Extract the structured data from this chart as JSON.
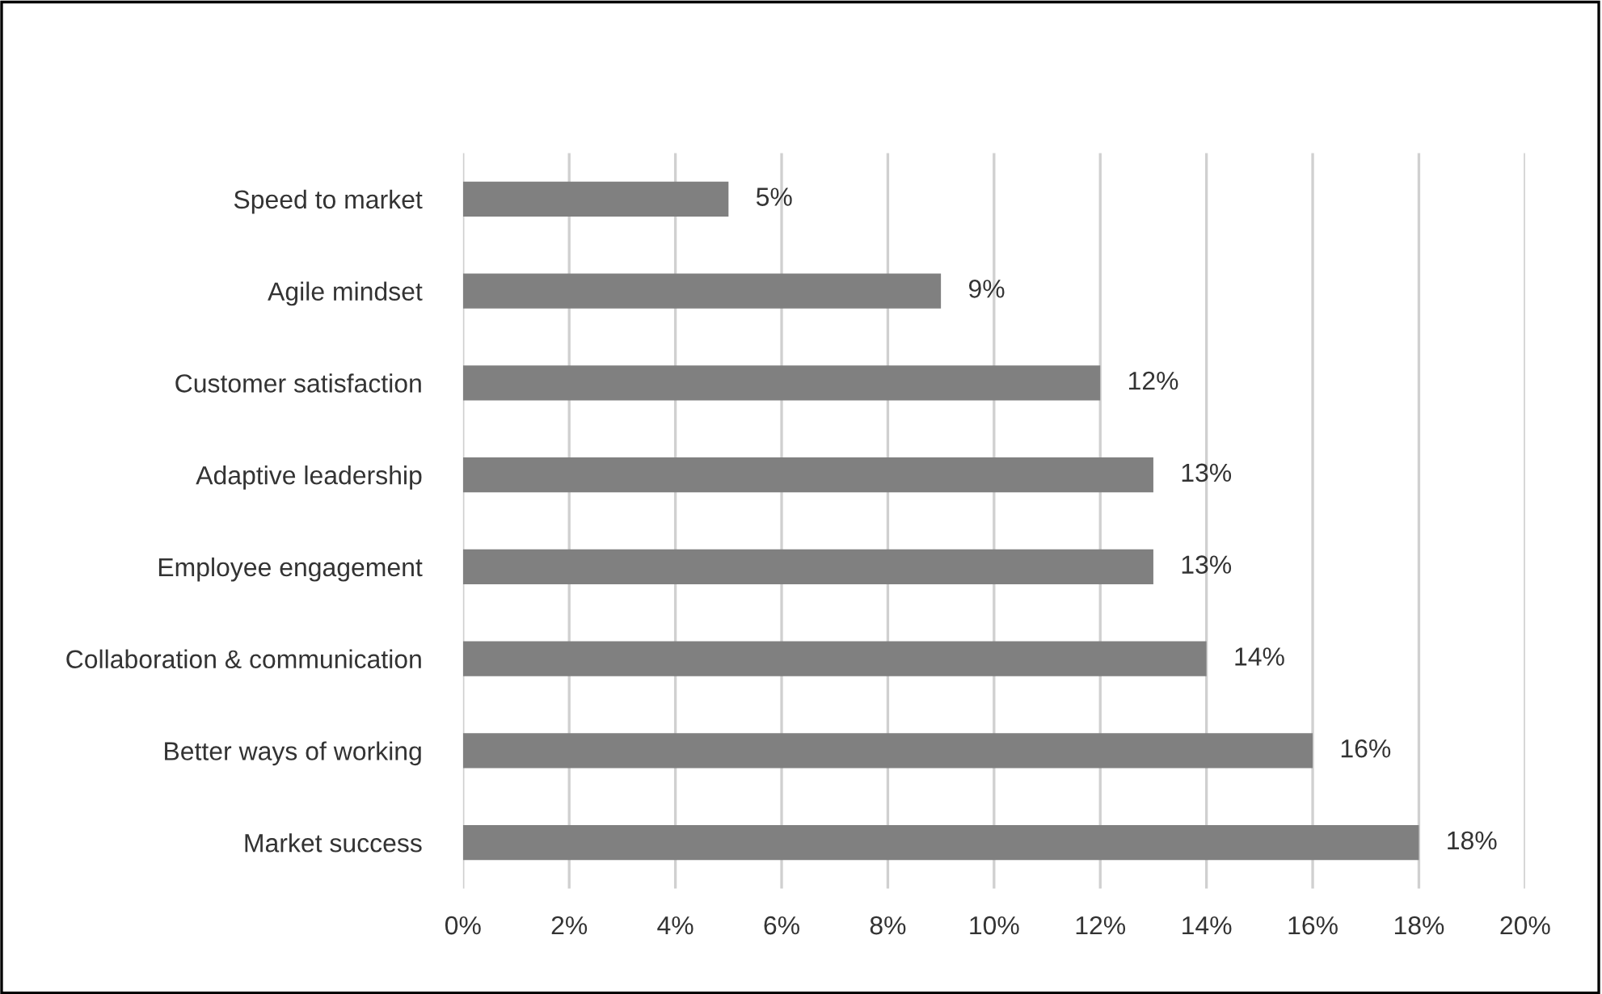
{
  "chart_data": {
    "type": "bar",
    "orientation": "horizontal",
    "categories": [
      "Speed to market",
      "Agile mindset",
      "Customer satisfaction",
      "Adaptive leadership",
      "Employee engagement",
      "Collaboration & communication",
      "Better ways of working",
      "Market success"
    ],
    "values": [
      5,
      9,
      12,
      13,
      13,
      14,
      16,
      18
    ],
    "value_labels": [
      "5%",
      "9%",
      "12%",
      "13%",
      "13%",
      "14%",
      "16%",
      "18%"
    ],
    "color": "#808080",
    "xlim": [
      0,
      20
    ],
    "xticks": [
      {
        "value": 0,
        "label": "0%"
      },
      {
        "value": 2,
        "label": "2%"
      },
      {
        "value": 4,
        "label": "4%"
      },
      {
        "value": 6,
        "label": "6%"
      },
      {
        "value": 8,
        "label": "8%"
      },
      {
        "value": 10,
        "label": "10%"
      },
      {
        "value": 12,
        "label": "12%"
      },
      {
        "value": 14,
        "label": "14%"
      },
      {
        "value": 16,
        "label": "16%"
      },
      {
        "value": 18,
        "label": "18%"
      },
      {
        "value": 20,
        "label": "20%"
      }
    ],
    "grid": "x",
    "legend": false
  }
}
